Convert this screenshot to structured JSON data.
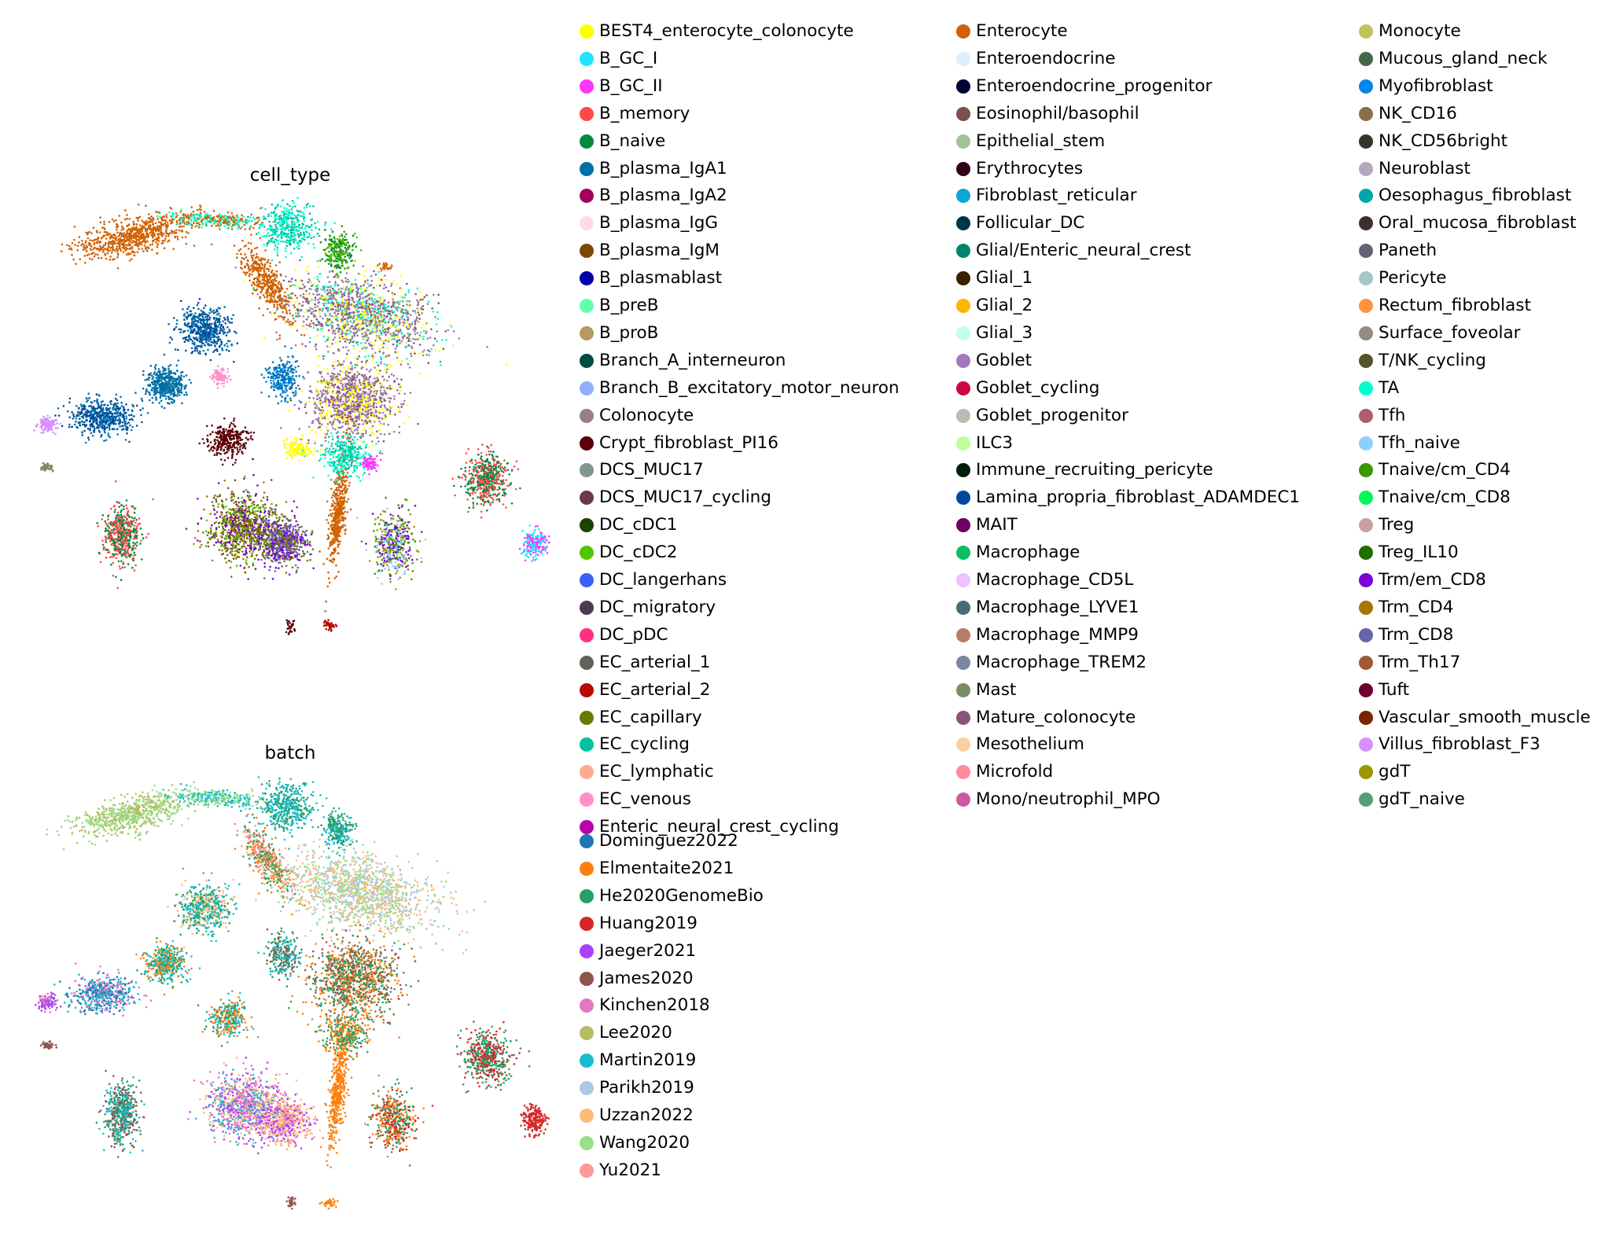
{
  "chart_data": [
    {
      "type": "scatter",
      "title": "cell_type",
      "xlabel": "",
      "ylabel": "",
      "grid": false,
      "legend_placement": "right",
      "categories": [
        {
          "label": "BEST4_enterocyte_colonocyte",
          "color": "#ffff00"
        },
        {
          "label": "B_GC_I",
          "color": "#1ce6ff"
        },
        {
          "label": "B_GC_II",
          "color": "#ff34ff"
        },
        {
          "label": "B_memory",
          "color": "#ff4a46"
        },
        {
          "label": "B_naive",
          "color": "#008941"
        },
        {
          "label": "B_plasma_IgA1",
          "color": "#006fa6"
        },
        {
          "label": "B_plasma_IgA2",
          "color": "#a30059"
        },
        {
          "label": "B_plasma_IgG",
          "color": "#ffdbe5"
        },
        {
          "label": "B_plasma_IgM",
          "color": "#7a4900"
        },
        {
          "label": "B_plasmablast",
          "color": "#0000a6"
        },
        {
          "label": "B_preB",
          "color": "#63ffac"
        },
        {
          "label": "B_proB",
          "color": "#b79762"
        },
        {
          "label": "Branch_A_interneuron",
          "color": "#004d43"
        },
        {
          "label": "Branch_B_excitatory_motor_neuron",
          "color": "#8fb0ff"
        },
        {
          "label": "Colonocyte",
          "color": "#997d87"
        },
        {
          "label": "Crypt_fibroblast_PI16",
          "color": "#5a0007"
        },
        {
          "label": "DCS_MUC17",
          "color": "#809693"
        },
        {
          "label": "DCS_MUC17_cycling",
          "color": "#6a3a4c"
        },
        {
          "label": "DC_cDC1",
          "color": "#1b4400"
        },
        {
          "label": "DC_cDC2",
          "color": "#4fc601"
        },
        {
          "label": "DC_langerhans",
          "color": "#3b5dff"
        },
        {
          "label": "DC_migratory",
          "color": "#4a3b53"
        },
        {
          "label": "DC_pDC",
          "color": "#ff2f80"
        },
        {
          "label": "EC_arterial_1",
          "color": "#61615a"
        },
        {
          "label": "EC_arterial_2",
          "color": "#ba0900"
        },
        {
          "label": "EC_capillary",
          "color": "#6b7900"
        },
        {
          "label": "EC_cycling",
          "color": "#00c2a0"
        },
        {
          "label": "EC_lymphatic",
          "color": "#ffaa92"
        },
        {
          "label": "EC_venous",
          "color": "#ff90c9"
        },
        {
          "label": "Enteric_neural_crest_cycling",
          "color": "#b903aa"
        },
        {
          "label": "Enterocyte",
          "color": "#d16100"
        },
        {
          "label": "Enteroendocrine",
          "color": "#ddefff"
        },
        {
          "label": "Enteroendocrine_progenitor",
          "color": "#000035"
        },
        {
          "label": "Eosinophil/basophil",
          "color": "#7b4f4b"
        },
        {
          "label": "Epithelial_stem",
          "color": "#a1c299"
        },
        {
          "label": "Erythrocytes",
          "color": "#300018"
        },
        {
          "label": "Fibroblast_reticular",
          "color": "#0aa6d8"
        },
        {
          "label": "Follicular_DC",
          "color": "#013349"
        },
        {
          "label": "Glial/Enteric_neural_crest",
          "color": "#00846f"
        },
        {
          "label": "Glial_1",
          "color": "#372101"
        },
        {
          "label": "Glial_2",
          "color": "#ffb500"
        },
        {
          "label": "Glial_3",
          "color": "#c2ffed"
        },
        {
          "label": "Goblet",
          "color": "#a079bf"
        },
        {
          "label": "Goblet_cycling",
          "color": "#cc0744"
        },
        {
          "label": "Goblet_progenitor",
          "color": "#c0b9b2"
        },
        {
          "label": "ILC3",
          "color": "#c2ff99"
        },
        {
          "label": "Immune_recruiting_pericyte",
          "color": "#001e09"
        },
        {
          "label": "Lamina_propria_fibroblast_ADAMDEC1",
          "color": "#00489c"
        },
        {
          "label": "MAIT",
          "color": "#6f0062"
        },
        {
          "label": "Macrophage",
          "color": "#0cbd66"
        },
        {
          "label": "Macrophage_CD5L",
          "color": "#eec3ff"
        },
        {
          "label": "Macrophage_LYVE1",
          "color": "#456d75"
        },
        {
          "label": "Macrophage_MMP9",
          "color": "#b77b68"
        },
        {
          "label": "Macrophage_TREM2",
          "color": "#7a87a1"
        },
        {
          "label": "Mast",
          "color": "#788d66"
        },
        {
          "label": "Mature_colonocyte",
          "color": "#885578"
        },
        {
          "label": "Mesothelium",
          "color": "#fad09f"
        },
        {
          "label": "Microfold",
          "color": "#ff8a9a"
        },
        {
          "label": "Mono/neutrophil_MPO",
          "color": "#d157a0"
        },
        {
          "label": "Monocyte",
          "color": "#bec459"
        },
        {
          "label": "Mucous_gland_neck",
          "color": "#456648"
        },
        {
          "label": "Myofibroblast",
          "color": "#0086ed"
        },
        {
          "label": "NK_CD16",
          "color": "#886f4c"
        },
        {
          "label": "NK_CD56bright",
          "color": "#34362d"
        },
        {
          "label": "Neuroblast",
          "color": "#b4a8bd"
        },
        {
          "label": "Oesophagus_fibroblast",
          "color": "#00a6aa"
        },
        {
          "label": "Oral_mucosa_fibroblast",
          "color": "#452c2c"
        },
        {
          "label": "Paneth",
          "color": "#636375"
        },
        {
          "label": "Pericyte",
          "color": "#a3c8c9"
        },
        {
          "label": "Rectum_fibroblast",
          "color": "#ff913f"
        },
        {
          "label": "Surface_foveolar",
          "color": "#938a81"
        },
        {
          "label": "T/NK_cycling",
          "color": "#575329"
        },
        {
          "label": "TA",
          "color": "#00fecf"
        },
        {
          "label": "Tfh",
          "color": "#b05b6f"
        },
        {
          "label": "Tfh_naive",
          "color": "#8cd0ff"
        },
        {
          "label": "Tnaive/cm_CD4",
          "color": "#3b9700"
        },
        {
          "label": "Tnaive/cm_CD8",
          "color": "#04f757"
        },
        {
          "label": "Treg",
          "color": "#c8a1a1"
        },
        {
          "label": "Treg_IL10",
          "color": "#1e6e00"
        },
        {
          "label": "Trm/em_CD8",
          "color": "#7900d7"
        },
        {
          "label": "Trm_CD4",
          "color": "#a77500"
        },
        {
          "label": "Trm_CD8",
          "color": "#6367a9"
        },
        {
          "label": "Trm_Th17",
          "color": "#a05837"
        },
        {
          "label": "Tuft",
          "color": "#6b002c"
        },
        {
          "label": "Vascular_smooth_muscle",
          "color": "#772600"
        },
        {
          "label": "Villus_fibroblast_F3",
          "color": "#d790ff"
        },
        {
          "label": "gdT",
          "color": "#9b9700"
        },
        {
          "label": "gdT_naive",
          "color": "#549e79"
        }
      ]
    },
    {
      "type": "scatter",
      "title": "batch",
      "xlabel": "",
      "ylabel": "",
      "grid": false,
      "legend_placement": "right",
      "categories": [
        {
          "label": "Dominguez2022",
          "color": "#1f77b4"
        },
        {
          "label": "Elmentaite2021",
          "color": "#ff7f0e"
        },
        {
          "label": "He2020GenomeBio",
          "color": "#279e68"
        },
        {
          "label": "Huang2019",
          "color": "#d62728"
        },
        {
          "label": "Jaeger2021",
          "color": "#aa40fc"
        },
        {
          "label": "James2020",
          "color": "#8c564b"
        },
        {
          "label": "Kinchen2018",
          "color": "#e377c2"
        },
        {
          "label": "Lee2020",
          "color": "#b5bd61"
        },
        {
          "label": "Martin2019",
          "color": "#17becf"
        },
        {
          "label": "Parikh2019",
          "color": "#aec7e8"
        },
        {
          "label": "Uzzan2022",
          "color": "#ffbb78"
        },
        {
          "label": "Wang2020",
          "color": "#98df8a"
        },
        {
          "label": "Yu2021",
          "color": "#ff9896"
        }
      ]
    }
  ]
}
